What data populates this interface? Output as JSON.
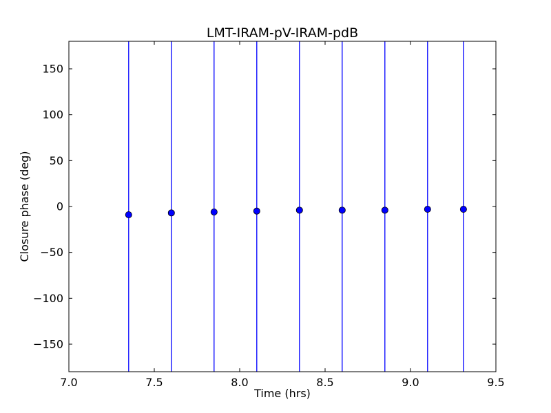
{
  "chart_data": {
    "type": "scatter",
    "title": "LMT-IRAM-pV-IRAM-pdB",
    "xlabel": "Time (hrs)",
    "ylabel": "Closure phase (deg)",
    "xlim": [
      7.0,
      9.5
    ],
    "ylim": [
      -180,
      180
    ],
    "xticks": [
      7.0,
      7.5,
      8.0,
      8.5,
      9.0,
      9.5
    ],
    "xtick_labels": [
      "7.0",
      "7.5",
      "8.0",
      "8.5",
      "9.0",
      "9.5"
    ],
    "yticks": [
      -150,
      -100,
      -50,
      0,
      50,
      100,
      150
    ],
    "ytick_labels": [
      "−150",
      "−100",
      "−50",
      "0",
      "50",
      "100",
      "150"
    ],
    "grid": false,
    "marker_color": "#0000ff",
    "errorbar_color": "#0000ff",
    "series": [
      {
        "x": [
          7.35,
          7.6,
          7.85,
          8.1,
          8.35,
          8.6,
          8.85,
          9.1,
          9.31
        ],
        "y": [
          -9,
          -7,
          -6,
          -5,
          -4,
          -4,
          -4,
          -3,
          -3
        ],
        "yerr_low": [
          -180,
          -180,
          -180,
          -180,
          -180,
          -180,
          -180,
          -180,
          -180
        ],
        "yerr_high": [
          180,
          180,
          180,
          180,
          180,
          180,
          180,
          180,
          180
        ]
      }
    ]
  }
}
